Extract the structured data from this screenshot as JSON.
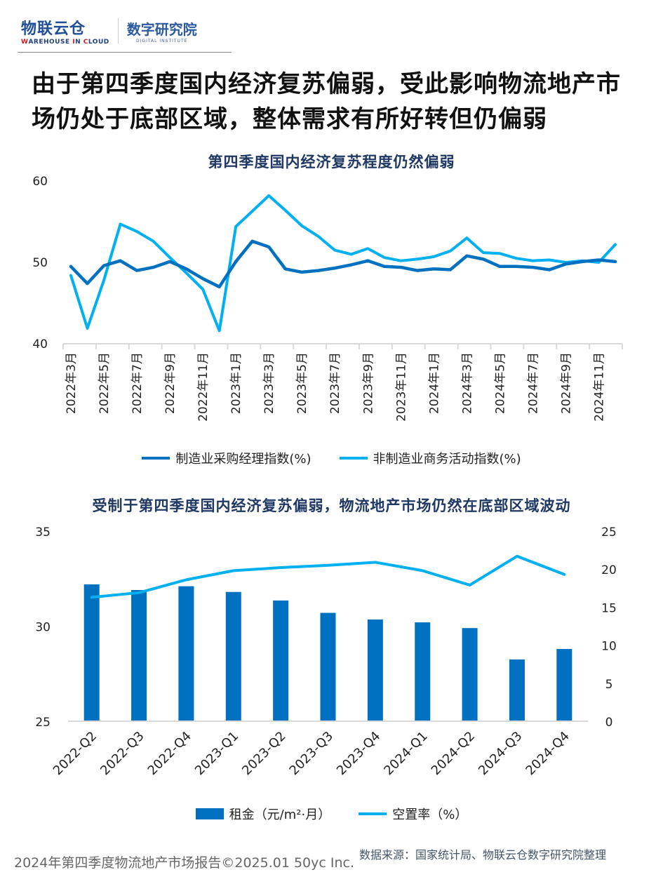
{
  "logo": {
    "brand_cn": "物联云仓",
    "brand_en_parts": [
      "W",
      "AREHOUSE ",
      "I",
      "N ",
      "C",
      "LOUD"
    ],
    "institute_cn": "数字研究院",
    "institute_en": "DIGITAL INSTITUTE"
  },
  "headline": "由于第四季度国内经济复苏偏弱，受此影响物流地产市场仍处于底部区域，整体需求有所好转但仍偏弱",
  "colors": {
    "dark_blue": "#0070c0",
    "light_blue": "#00b0f0",
    "title": "#1f3864"
  },
  "chart_data": [
    {
      "type": "line",
      "title": "第四季度国内经济复苏程度仍然偏弱",
      "x": [
        "2022年3月",
        "2022年4月",
        "2022年5月",
        "2022年6月",
        "2022年7月",
        "2022年8月",
        "2022年9月",
        "2022年10月",
        "2022年11月",
        "2022年12月",
        "2023年1月",
        "2023年2月",
        "2023年3月",
        "2023年4月",
        "2023年5月",
        "2023年6月",
        "2023年7月",
        "2023年8月",
        "2023年9月",
        "2023年10月",
        "2023年11月",
        "2023年12月",
        "2024年1月",
        "2024年2月",
        "2024年3月",
        "2024年4月",
        "2024年5月",
        "2024年6月",
        "2024年7月",
        "2024年8月",
        "2024年9月",
        "2024年10月",
        "2024年11月",
        "2024年12月"
      ],
      "tick_labels": [
        "2022年3月",
        "2022年5月",
        "2022年7月",
        "2022年9月",
        "2022年11月",
        "2023年1月",
        "2023年3月",
        "2023年5月",
        "2023年7月",
        "2023年9月",
        "2023年11月",
        "2024年1月",
        "2024年3月",
        "2024年5月",
        "2024年7月",
        "2024年9月",
        "2024年11月"
      ],
      "yticks": [
        40,
        50,
        60
      ],
      "ylim": [
        40,
        60
      ],
      "grid": false,
      "legend": "bottom",
      "series": [
        {
          "name": "制造业采购经理指数(%)",
          "color": "#0070c0",
          "values": [
            49.5,
            47.4,
            49.6,
            50.2,
            49.0,
            49.4,
            50.1,
            49.2,
            48.0,
            47.0,
            50.1,
            52.6,
            51.9,
            49.2,
            48.8,
            49.0,
            49.3,
            49.7,
            50.2,
            49.5,
            49.4,
            49.0,
            49.2,
            49.1,
            50.8,
            50.4,
            49.5,
            49.5,
            49.4,
            49.1,
            49.8,
            50.1,
            50.3,
            50.1
          ]
        },
        {
          "name": "非制造业商务活动指数(%)",
          "color": "#00b0f0",
          "values": [
            48.4,
            41.9,
            47.8,
            54.7,
            53.8,
            52.6,
            50.6,
            48.7,
            46.7,
            41.6,
            54.4,
            56.3,
            58.2,
            56.4,
            54.5,
            53.2,
            51.5,
            51.0,
            51.7,
            50.6,
            50.2,
            50.4,
            50.7,
            51.4,
            53.0,
            51.2,
            51.1,
            50.5,
            50.2,
            50.3,
            50.0,
            50.2,
            50.0,
            52.2
          ]
        }
      ]
    },
    {
      "type": "bar",
      "title": "受制于第四季度国内经济复苏偏弱，物流地产市场仍然在底部区域波动",
      "categories": [
        "2022-Q2",
        "2022-Q3",
        "2022-Q4",
        "2023-Q1",
        "2023-Q2",
        "2023-Q3",
        "2023-Q4",
        "2024-Q1",
        "2024-Q2",
        "2024-Q3",
        "2024-Q4"
      ],
      "ylim_left": [
        25,
        35
      ],
      "yticks_left": [
        25,
        30,
        35
      ],
      "ylim_right": [
        0,
        25
      ],
      "yticks_right": [
        0,
        5,
        10,
        15,
        20,
        25
      ],
      "legend": "bottom",
      "series": [
        {
          "name": "租金（元/m²·月）",
          "type": "bar",
          "axis": "left",
          "color": "#0070c0",
          "values": [
            32.2,
            31.9,
            32.1,
            31.8,
            31.35,
            30.7,
            30.35,
            30.2,
            29.9,
            28.25,
            28.8
          ]
        },
        {
          "name": "空置率（%）",
          "type": "line",
          "axis": "right",
          "color": "#00b0f0",
          "values": [
            16.3,
            16.9,
            18.6,
            19.8,
            20.2,
            20.5,
            20.9,
            19.8,
            17.9,
            21.7,
            19.3
          ]
        }
      ]
    }
  ],
  "footer": {
    "copyright": "2024年第四季度物流地产市场报告©2025.01 50yc Inc.",
    "source": "数据来源：国家统计局、物联云仓数字研究院整理"
  }
}
